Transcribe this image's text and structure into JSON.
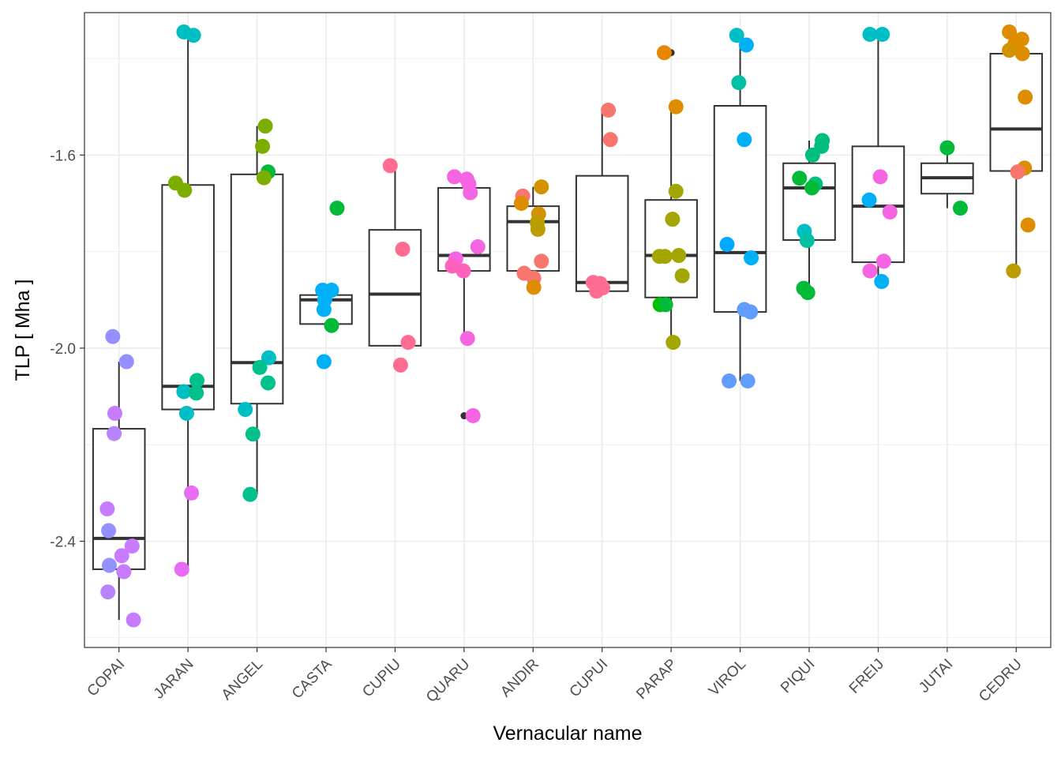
{
  "chart_data": {
    "type": "box",
    "xlabel": "Vernacular name",
    "ylabel": "TLP [ Mha ]",
    "ylim": [
      -2.62,
      -1.305
    ],
    "yticks": [
      -2.4,
      -2.0,
      -1.6
    ],
    "ytick_labels": [
      "-2.4",
      "-2.0",
      "-1.6"
    ],
    "grid": true,
    "legend": "none",
    "categories": [
      "COPAI",
      "JARAN",
      "ANGEL",
      "CASTA",
      "CUPIU",
      "QUARU",
      "ANDIR",
      "CUPUI",
      "PARAP",
      "VIROL",
      "PIQUI",
      "FREIJ",
      "JUTAI",
      "CEDRU"
    ],
    "boxes": [
      {
        "name": "COPAI",
        "q1": -2.458,
        "median": -2.394,
        "q3": -2.167,
        "whisker_low": -2.563,
        "whisker_high": -2.028,
        "outliers": []
      },
      {
        "name": "JARAN",
        "q1": -2.127,
        "median": -2.079,
        "q3": -1.662,
        "whisker_low": -2.458,
        "whisker_high": -1.345,
        "outliers": []
      },
      {
        "name": "ANGEL",
        "q1": -2.115,
        "median": -2.03,
        "q3": -1.64,
        "whisker_low": -2.303,
        "whisker_high": -1.54,
        "outliers": []
      },
      {
        "name": "CASTA",
        "q1": -1.95,
        "median": -1.9,
        "q3": -1.89,
        "whisker_low": -1.95,
        "whisker_high": -1.89,
        "outliers": [
          -2.028
        ]
      },
      {
        "name": "CUPIU",
        "q1": -1.995,
        "median": -1.888,
        "q3": -1.755,
        "whisker_low": -1.995,
        "whisker_high": -1.622,
        "outliers": []
      },
      {
        "name": "QUARU",
        "q1": -1.84,
        "median": -1.808,
        "q3": -1.668,
        "whisker_low": -1.98,
        "whisker_high": -1.645,
        "outliers": [
          -2.14
        ]
      },
      {
        "name": "ANDIR",
        "q1": -1.84,
        "median": -1.738,
        "q3": -1.706,
        "whisker_low": -1.874,
        "whisker_high": -1.666,
        "outliers": []
      },
      {
        "name": "CUPUI",
        "q1": -1.882,
        "median": -1.864,
        "q3": -1.643,
        "whisker_low": -1.882,
        "whisker_high": -1.507,
        "outliers": []
      },
      {
        "name": "PARAP",
        "q1": -1.895,
        "median": -1.808,
        "q3": -1.693,
        "whisker_low": -1.988,
        "whisker_high": -1.5,
        "outliers": [
          -1.388
        ]
      },
      {
        "name": "VIROL",
        "q1": -1.925,
        "median": -1.802,
        "q3": -1.498,
        "whisker_low": -2.068,
        "whisker_high": -1.352,
        "outliers": []
      },
      {
        "name": "PIQUI",
        "q1": -1.776,
        "median": -1.668,
        "q3": -1.617,
        "whisker_low": -1.876,
        "whisker_high": -1.57,
        "outliers": []
      },
      {
        "name": "FREIJ",
        "q1": -1.822,
        "median": -1.706,
        "q3": -1.582,
        "whisker_low": -1.862,
        "whisker_high": -1.35,
        "outliers": []
      },
      {
        "name": "JUTAI",
        "q1": -1.68,
        "median": -1.647,
        "q3": -1.617,
        "whisker_low": -1.71,
        "whisker_high": -1.585,
        "outliers": []
      },
      {
        "name": "CEDRU",
        "q1": -1.633,
        "median": -1.546,
        "q3": -1.39,
        "whisker_low": -1.84,
        "whisker_high": -1.36,
        "outliers": []
      }
    ],
    "points": [
      {
        "category": "COPAI",
        "values": [
          -1.976,
          -2.028,
          -2.135,
          -2.177,
          -2.333,
          -2.378,
          -2.41,
          -2.43,
          -2.45,
          -2.463,
          -2.505,
          -2.563
        ],
        "colors": [
          "#9590FF",
          "#9590FF",
          "#C77CFF",
          "#B983FF",
          "#C77CFF",
          "#9590FF",
          "#C77CFF",
          "#C77CFF",
          "#9590FF",
          "#C77CFF",
          "#B983FF",
          "#C77CFF"
        ],
        "jitter": [
          -0.09,
          0.11,
          -0.06,
          -0.07,
          -0.17,
          -0.15,
          0.19,
          0.04,
          -0.14,
          0.07,
          -0.16,
          0.21
        ]
      },
      {
        "category": "JARAN",
        "values": [
          -1.345,
          -1.352,
          -1.658,
          -1.673,
          -2.067,
          -2.09,
          -2.093,
          -2.135,
          -2.3,
          -2.458
        ],
        "colors": [
          "#00BFC4",
          "#00BFC4",
          "#7CAE00",
          "#7CAE00",
          "#00C08B",
          "#00BFC4",
          "#00C08B",
          "#00BFC4",
          "#E76BF3",
          "#E76BF3"
        ],
        "jitter": [
          -0.06,
          0.08,
          -0.18,
          -0.05,
          0.13,
          -0.06,
          0.12,
          -0.02,
          0.05,
          -0.09
        ],
        "size": [
          1,
          1,
          1,
          1,
          1,
          1,
          1,
          1,
          1,
          1
        ]
      },
      {
        "category": "ANGEL",
        "values": [
          -1.54,
          -1.582,
          -1.635,
          -1.647,
          -2.02,
          -2.04,
          -2.072,
          -2.127,
          -2.178,
          -2.303
        ],
        "colors": [
          "#7CAE00",
          "#7CAE00",
          "#00BA38",
          "#7CAE00",
          "#00BFC4",
          "#00C08B",
          "#00C08B",
          "#00BFC4",
          "#00C08B",
          "#00C08B"
        ],
        "jitter": [
          0.12,
          0.08,
          0.16,
          0.1,
          0.17,
          0.04,
          0.16,
          -0.17,
          -0.06,
          -0.1
        ]
      },
      {
        "category": "CASTA",
        "values": [
          -1.71,
          -1.88,
          -1.88,
          -1.9,
          -1.92,
          -1.953,
          -2.028
        ],
        "colors": [
          "#00BA38",
          "#00B0F6",
          "#00B0F6",
          "#00B0F6",
          "#00B0F6",
          "#00BA38",
          "#00B0F6"
        ],
        "jitter": [
          0.16,
          -0.05,
          0.08,
          -0.02,
          -0.03,
          0.08,
          -0.03
        ]
      },
      {
        "category": "CUPIU",
        "values": [
          -1.622,
          -1.795,
          -1.988,
          -2.035
        ],
        "colors": [
          "#FF6C91",
          "#FF6C91",
          "#FF6C91",
          "#FF6C91"
        ],
        "jitter": [
          -0.07,
          0.11,
          0.19,
          0.08
        ]
      },
      {
        "category": "QUARU",
        "values": [
          -1.645,
          -1.65,
          -1.66,
          -1.678,
          -1.79,
          -1.815,
          -1.83,
          -1.84,
          -1.98,
          -2.14
        ],
        "colors": [
          "#F564E3",
          "#F564E3",
          "#F564E3",
          "#F564E3",
          "#F564E3",
          "#F564E3",
          "#FF62BC",
          "#FF62BC",
          "#F564E3",
          "#F564E3"
        ],
        "jitter": [
          -0.14,
          0.04,
          0.07,
          0.09,
          0.2,
          -0.12,
          -0.17,
          -0.01,
          0.05,
          0.13
        ]
      },
      {
        "category": "ANDIR",
        "values": [
          -1.666,
          -1.685,
          -1.7,
          -1.722,
          -1.74,
          -1.754,
          -1.82,
          -1.845,
          -1.855,
          -1.874
        ],
        "colors": [
          "#D39200",
          "#F8766D",
          "#DE8C00",
          "#D39200",
          "#BB9D00",
          "#BB9D00",
          "#F8766D",
          "#F8766D",
          "#F8766D",
          "#DE8C00"
        ],
        "jitter": [
          0.12,
          -0.15,
          -0.17,
          0.08,
          0.06,
          0.07,
          0.12,
          -0.13,
          0.01,
          0.01
        ]
      },
      {
        "category": "CUPUI",
        "values": [
          -1.507,
          -1.568,
          -1.864,
          -1.866,
          -1.875,
          -1.882
        ],
        "colors": [
          "#F8766D",
          "#F8766D",
          "#FF6C91",
          "#FF6C91",
          "#FF6C91",
          "#FF6C91"
        ],
        "jitter": [
          0.09,
          0.12,
          -0.13,
          -0.03,
          0.01,
          -0.08
        ]
      },
      {
        "category": "PARAP",
        "values": [
          -1.388,
          -1.5,
          -1.675,
          -1.733,
          -1.81,
          -1.808,
          -1.81,
          -1.85,
          -1.91,
          -1.91,
          -1.988
        ],
        "colors": [
          "#E58700",
          "#DE8C00",
          "#A3A500",
          "#A3A500",
          "#A3A500",
          "#A3A500",
          "#A3A500",
          "#A3A500",
          "#00C000",
          "#00BA38",
          "#A3A500"
        ],
        "jitter": [
          -0.1,
          0.07,
          0.07,
          0.02,
          -0.09,
          0.11,
          -0.17,
          0.16,
          -0.16,
          -0.08,
          0.03
        ]
      },
      {
        "category": "VIROL",
        "values": [
          -1.352,
          -1.372,
          -1.45,
          -1.568,
          -1.785,
          -1.813,
          -1.92,
          -1.925,
          -2.068,
          -2.068
        ],
        "colors": [
          "#00BFC4",
          "#00B0F6",
          "#00C1A3",
          "#00B0F6",
          "#00A9FF",
          "#00B0F6",
          "#619CFF",
          "#619CFF",
          "#619CFF",
          "#619CFF"
        ],
        "jitter": [
          -0.05,
          0.09,
          -0.02,
          0.06,
          -0.19,
          0.16,
          0.06,
          0.15,
          -0.16,
          0.11
        ]
      },
      {
        "category": "PIQUI",
        "values": [
          -1.57,
          -1.582,
          -1.6,
          -1.648,
          -1.66,
          -1.668,
          -1.758,
          -1.777,
          -1.876,
          -1.885
        ],
        "colors": [
          "#00BF7D",
          "#00BF7D",
          "#00BF7D",
          "#00BA38",
          "#00BF7D",
          "#00BA38",
          "#00BFC4",
          "#00C1A3",
          "#00BA38",
          "#00BA38"
        ],
        "jitter": [
          0.19,
          0.18,
          0.05,
          -0.14,
          0.09,
          0.04,
          -0.07,
          -0.03,
          -0.08,
          -0.02
        ]
      },
      {
        "category": "FREIJ",
        "values": [
          -1.35,
          -1.35,
          -1.645,
          -1.693,
          -1.718,
          -1.82,
          -1.84,
          -1.862
        ],
        "colors": [
          "#00BFC4",
          "#00BFC4",
          "#F564E3",
          "#00B0F6",
          "#F564E3",
          "#F564E3",
          "#F564E3",
          "#00B0F6"
        ],
        "jitter": [
          -0.12,
          0.06,
          0.03,
          -0.13,
          0.17,
          0.08,
          -0.12,
          0.05
        ]
      },
      {
        "category": "JUTAI",
        "values": [
          -1.585,
          -1.71
        ],
        "colors": [
          "#00BA38",
          "#00BA38"
        ],
        "jitter": [
          0.0,
          0.19
        ]
      },
      {
        "category": "CEDRU",
        "values": [
          -1.345,
          -1.36,
          -1.37,
          -1.39,
          -1.383,
          -1.48,
          -1.627,
          -1.635,
          -1.745,
          -1.84
        ],
        "colors": [
          "#DE8C00",
          "#DE8C00",
          "#DE8C00",
          "#DE8C00",
          "#D39200",
          "#DE8C00",
          "#DE8C00",
          "#F8766D",
          "#DE8C00",
          "#BB9D00"
        ],
        "jitter": [
          -0.1,
          0.08,
          -0.02,
          0.09,
          -0.1,
          0.13,
          0.12,
          0.02,
          0.17,
          -0.04
        ]
      }
    ]
  }
}
